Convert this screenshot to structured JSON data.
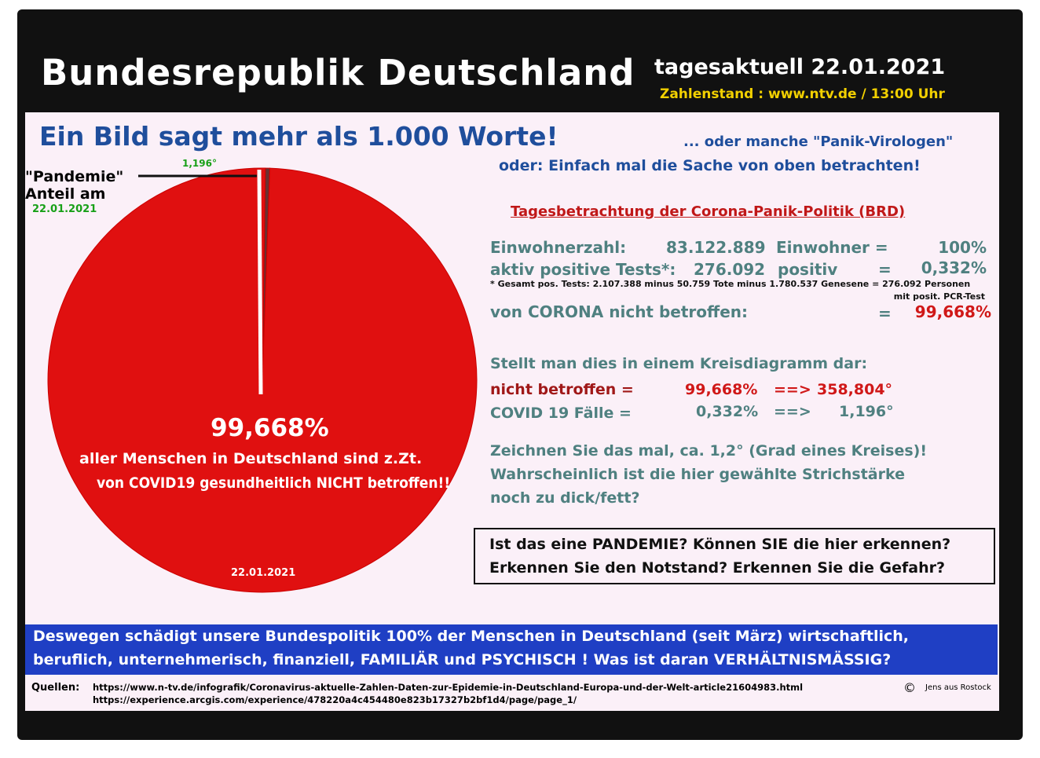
{
  "header": {
    "title": "Bundesrepublik  Deutschland",
    "date_line": "tagesaktuell 22.01.2021",
    "source_line": "Zahlenstand : www.ntv.de / 13:00 Uhr"
  },
  "headline": "Ein Bild sagt mehr als 1.000 Worte!",
  "subhead1": "... oder manche \"Panik-Virologen\"",
  "subhead2": "oder:   Einfach mal die Sache von oben betrachten!",
  "section_title": "Tagesbetrachtung der Corona-Panik-Politik (BRD)",
  "stats": {
    "row1": {
      "label": "Einwohnerzahl:",
      "value": "83.122.889",
      "unit": "Einwohner =",
      "pct": "100%"
    },
    "row2": {
      "label": "aktiv positive Tests*:",
      "value": "276.092",
      "unit": "positiv",
      "eq": "=",
      "pct": "0,332%"
    },
    "footnote": "* Gesamt pos. Tests: 2.107.388  minus 50.759 Tote  minus 1.780.537 Genesene =  276.092 Personen",
    "footnote2": "mit posit. PCR-Test",
    "row3": {
      "label": "von CORONA nicht betroffen:",
      "eq": "=",
      "pct": "99,668%"
    }
  },
  "pie_text": {
    "intro": "Stellt man dies in einem Kreisdiagramm dar:",
    "r1_label": "nicht betroffen =",
    "r1_pct": "99,668%",
    "r1_arrow": "==>",
    "r1_deg": "358,804°",
    "r2_label": "COVID 19 Fälle =",
    "r2_pct": "0,332%",
    "r2_arrow": "==>",
    "r2_deg": "1,196°"
  },
  "remark": [
    "Zeichnen Sie das mal,   ca. 1,2°  (Grad eines Kreises)!",
    "Wahrscheinlich ist die hier gewählte Strichstärke",
    "noch zu dick/fett?"
  ],
  "question": [
    "Ist das eine PANDEMIE? Können SIE die hier erkennen?",
    "Erkennen Sie den Notstand? Erkennen Sie die Gefahr?"
  ],
  "banner": [
    "Deswegen schädigt unsere Bundespolitik 100% der Menschen in Deutschland (seit März) wirtschaftlich,",
    "beruflich, unternehmerisch, finanziell, FAMILIÄR und PSYCHISCH ! Was ist daran VERHÄLTNISMÄSSIG?"
  ],
  "sources": {
    "label": "Quellen:",
    "url1": "https://www.n-tv.de/infografik/Coronavirus-aktuelle-Zahlen-Daten-zur-Epidemie-in-Deutschland-Europa-und-der-Welt-article21604983.html",
    "url2": "https://experience.arcgis.com/experience/478220a4c454480e823b17327b2bf1d4/page/page_1/",
    "copyright": "©",
    "author": "Jens aus Rostock"
  },
  "chart_data": {
    "type": "pie",
    "title": "\"Pandemie\" Anteil am",
    "date_label": "22.01.2021",
    "slices": [
      {
        "name": "nicht betroffen",
        "percent": 99.668,
        "degrees": 358.804,
        "color": "#e01010"
      },
      {
        "name": "COVID 19 Fälle",
        "percent": 0.332,
        "degrees": 1.196,
        "color": "#6a3030"
      }
    ],
    "slice_label": "1,196°",
    "center_value": "99,668%",
    "center_text1": "aller Menschen in Deutschland sind z.Zt.",
    "center_text2": "von COVID19 gesundheitlich NICHT betroffen!!",
    "bottom_date": "22.01.2021"
  }
}
